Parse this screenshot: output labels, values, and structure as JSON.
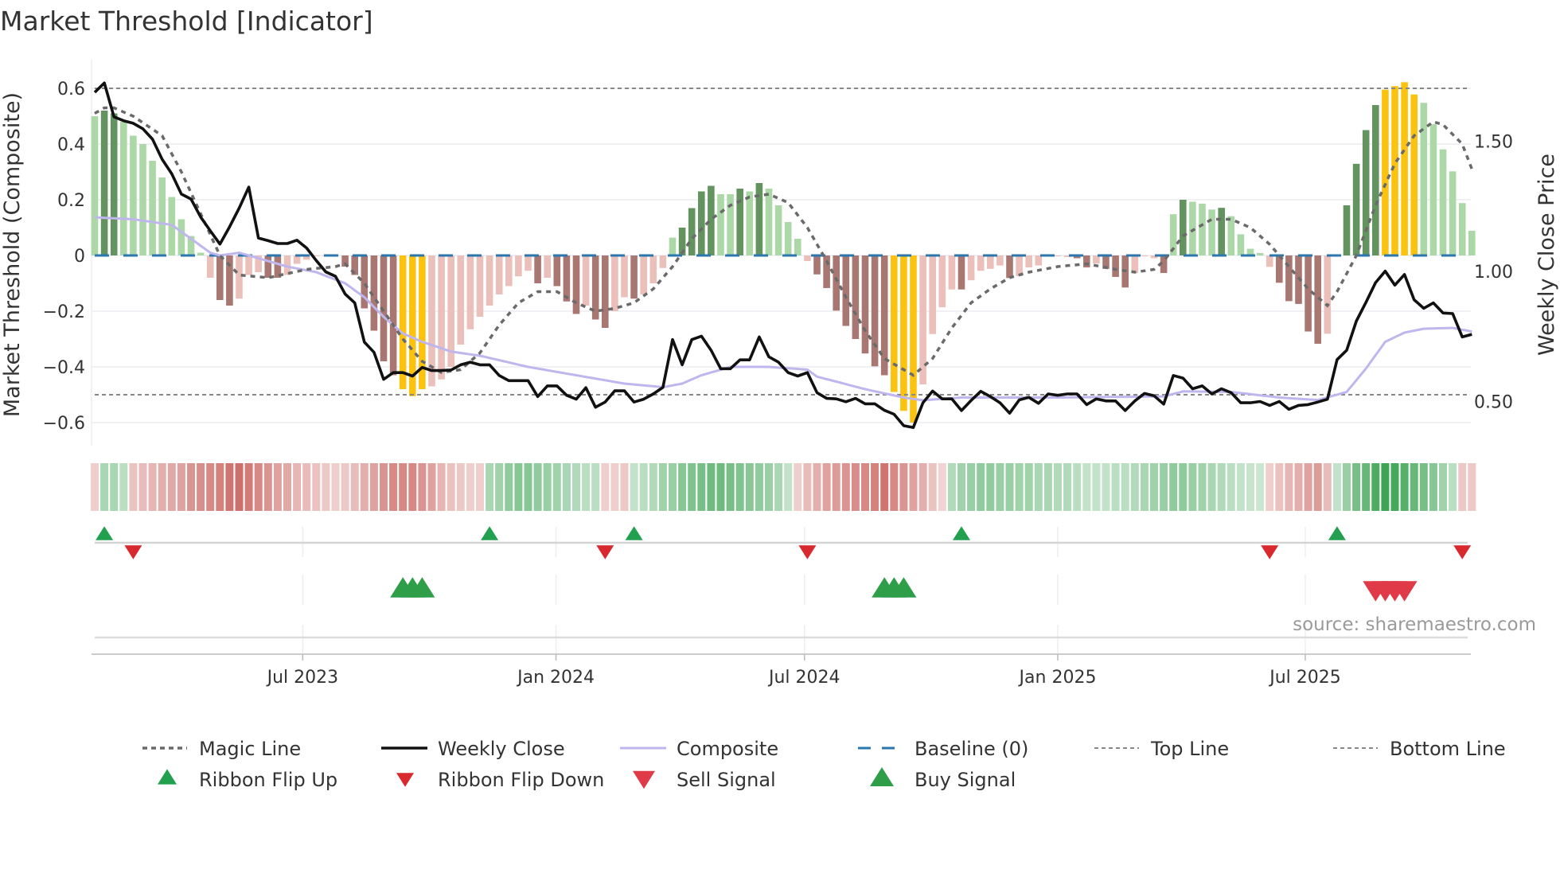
{
  "title": "Market Threshold [Indicator]",
  "source_text": "source: sharemaestro.com",
  "chart_data": {
    "type": "bar",
    "title": "Market Threshold [Indicator]",
    "ylabel": "Market Threshold (Composite)",
    "y2label": "Weekly Close Price",
    "ylim": [
      -0.68,
      0.68
    ],
    "y2lim": [
      0.4,
      1.8
    ],
    "yticks": [
      {
        "v": 0.6,
        "label": "0.6"
      },
      {
        "v": 0.4,
        "label": "0.4"
      },
      {
        "v": 0.2,
        "label": "0.2"
      },
      {
        "v": 0,
        "label": "0"
      },
      {
        "v": -0.2,
        "label": "−0.2"
      },
      {
        "v": -0.4,
        "label": "−0.4"
      },
      {
        "v": -0.6,
        "label": "−0.6"
      }
    ],
    "y2ticks": [
      {
        "v": 1.5,
        "label": "1.50"
      },
      {
        "v": 1.0,
        "label": "1.00"
      },
      {
        "v": 0.5,
        "label": "0.50"
      }
    ],
    "xticks": [
      {
        "week": 21.6,
        "label": "Jul 2023"
      },
      {
        "week": 47.9,
        "label": "Jan 2024"
      },
      {
        "week": 73.7,
        "label": "Jul 2024"
      },
      {
        "week": 100,
        "label": "Jan 2025"
      },
      {
        "week": 125.7,
        "label": "Jul 2025"
      }
    ],
    "top_line": 0.6,
    "bottom_line": -0.5,
    "baseline": 0,
    "composite_bars": [
      [
        0.5,
        "lg"
      ],
      [
        0.52,
        "dg"
      ],
      [
        0.51,
        "dg"
      ],
      [
        0.48,
        "lg"
      ],
      [
        0.43,
        "lg"
      ],
      [
        0.4,
        "lg"
      ],
      [
        0.34,
        "lg"
      ],
      [
        0.28,
        "lg"
      ],
      [
        0.21,
        "lg"
      ],
      [
        0.13,
        "lg"
      ],
      [
        0.07,
        "lg"
      ],
      [
        0.01,
        "lg"
      ],
      [
        -0.08,
        "lr"
      ],
      [
        -0.16,
        "dr"
      ],
      [
        -0.18,
        "dr"
      ],
      [
        -0.155,
        "lr"
      ],
      [
        -0.07,
        "lr"
      ],
      [
        -0.06,
        "lr"
      ],
      [
        -0.08,
        "dr"
      ],
      [
        -0.08,
        "dr"
      ],
      [
        -0.07,
        "lr"
      ],
      [
        -0.03,
        "lr"
      ],
      [
        -0.015,
        "lr"
      ],
      [
        -0.003,
        "lr"
      ],
      [
        -0.003,
        "lr"
      ],
      [
        -0.003,
        "lr"
      ],
      [
        -0.04,
        "dr"
      ],
      [
        -0.07,
        "dr"
      ],
      [
        -0.19,
        "dr"
      ],
      [
        -0.27,
        "dr"
      ],
      [
        -0.38,
        "dr"
      ],
      [
        -0.43,
        "dr"
      ],
      [
        -0.48,
        "y"
      ],
      [
        -0.505,
        "y"
      ],
      [
        -0.48,
        "y"
      ],
      [
        -0.47,
        "lr"
      ],
      [
        -0.445,
        "lr"
      ],
      [
        -0.4,
        "lr"
      ],
      [
        -0.32,
        "lr"
      ],
      [
        -0.265,
        "lr"
      ],
      [
        -0.22,
        "lr"
      ],
      [
        -0.18,
        "lr"
      ],
      [
        -0.14,
        "lr"
      ],
      [
        -0.11,
        "lr"
      ],
      [
        -0.075,
        "lr"
      ],
      [
        -0.055,
        "lr"
      ],
      [
        -0.1,
        "dr"
      ],
      [
        -0.08,
        "lr"
      ],
      [
        -0.11,
        "dr"
      ],
      [
        -0.165,
        "dr"
      ],
      [
        -0.21,
        "dr"
      ],
      [
        -0.18,
        "lr"
      ],
      [
        -0.23,
        "dr"
      ],
      [
        -0.26,
        "dr"
      ],
      [
        -0.2,
        "lr"
      ],
      [
        -0.15,
        "lr"
      ],
      [
        -0.155,
        "dr"
      ],
      [
        -0.14,
        "lr"
      ],
      [
        -0.1,
        "lr"
      ],
      [
        -0.045,
        "lr"
      ],
      [
        0.064,
        "lg"
      ],
      [
        0.1,
        "dg"
      ],
      [
        0.17,
        "dg"
      ],
      [
        0.23,
        "dg"
      ],
      [
        0.25,
        "dg"
      ],
      [
        0.22,
        "lg"
      ],
      [
        0.22,
        "lg"
      ],
      [
        0.24,
        "dg"
      ],
      [
        0.23,
        "lg"
      ],
      [
        0.26,
        "dg"
      ],
      [
        0.24,
        "lg"
      ],
      [
        0.18,
        "lg"
      ],
      [
        0.12,
        "lg"
      ],
      [
        0.06,
        "lg"
      ],
      [
        -0.02,
        "lr"
      ],
      [
        -0.068,
        "dr"
      ],
      [
        -0.117,
        "dr"
      ],
      [
        -0.198,
        "dr"
      ],
      [
        -0.253,
        "dr"
      ],
      [
        -0.3,
        "dr"
      ],
      [
        -0.352,
        "dr"
      ],
      [
        -0.398,
        "dr"
      ],
      [
        -0.43,
        "dr"
      ],
      [
        -0.49,
        "y"
      ],
      [
        -0.558,
        "y"
      ],
      [
        -0.6,
        "y"
      ],
      [
        -0.463,
        "lr"
      ],
      [
        -0.282,
        "lr"
      ],
      [
        -0.186,
        "lr"
      ],
      [
        -0.122,
        "lr"
      ],
      [
        -0.122,
        "dr"
      ],
      [
        -0.089,
        "lr"
      ],
      [
        -0.055,
        "lr"
      ],
      [
        -0.048,
        "lr"
      ],
      [
        -0.036,
        "lr"
      ],
      [
        -0.081,
        "dr"
      ],
      [
        -0.074,
        "lr"
      ],
      [
        -0.043,
        "lr"
      ],
      [
        -0.036,
        "lr"
      ],
      [
        -0.003,
        "lr"
      ],
      [
        -0.003,
        "lr"
      ],
      [
        -0.006,
        "lr"
      ],
      [
        -0.01,
        "dr"
      ],
      [
        -0.043,
        "dr"
      ],
      [
        -0.029,
        "lr"
      ],
      [
        -0.048,
        "dr"
      ],
      [
        -0.077,
        "dr"
      ],
      [
        -0.115,
        "dr"
      ],
      [
        -0.063,
        "lr"
      ],
      [
        -0.003,
        "lr"
      ],
      [
        -0.01,
        "lr"
      ],
      [
        -0.063,
        "dr"
      ],
      [
        0.148,
        "lg"
      ],
      [
        0.2,
        "dg"
      ],
      [
        0.193,
        "lg"
      ],
      [
        0.186,
        "lg"
      ],
      [
        0.165,
        "lg"
      ],
      [
        0.171,
        "dg"
      ],
      [
        0.141,
        "lg"
      ],
      [
        0.076,
        "lg"
      ],
      [
        0.024,
        "lg"
      ],
      [
        0.009,
        "lg"
      ],
      [
        -0.041,
        "lr"
      ],
      [
        -0.098,
        "dr"
      ],
      [
        -0.164,
        "dr"
      ],
      [
        -0.174,
        "dr"
      ],
      [
        -0.273,
        "dr"
      ],
      [
        -0.317,
        "dr"
      ],
      [
        -0.281,
        "lr"
      ],
      [
        -0.002,
        "lr"
      ],
      [
        0.18,
        "dg"
      ],
      [
        0.329,
        "dg"
      ],
      [
        0.45,
        "dg"
      ],
      [
        0.54,
        "dg"
      ],
      [
        0.595,
        "y"
      ],
      [
        0.608,
        "y"
      ],
      [
        0.622,
        "y"
      ],
      [
        0.578,
        "y"
      ],
      [
        0.548,
        "lg"
      ],
      [
        0.471,
        "lg"
      ],
      [
        0.381,
        "lg"
      ],
      [
        0.302,
        "lg"
      ],
      [
        0.188,
        "lg"
      ],
      [
        0.089,
        "lg"
      ]
    ],
    "weekly_close": [
      1.688,
      1.724,
      1.594,
      1.579,
      1.569,
      1.548,
      1.508,
      1.431,
      1.375,
      1.297,
      1.278,
      1.209,
      1.156,
      1.105,
      1.171,
      1.243,
      1.324,
      1.128,
      1.118,
      1.107,
      1.107,
      1.12,
      1.09,
      1.042,
      0.998,
      0.981,
      0.913,
      0.879,
      0.728,
      0.689,
      0.585,
      0.611,
      0.611,
      0.598,
      0.631,
      0.619,
      0.619,
      0.621,
      0.641,
      0.651,
      0.641,
      0.641,
      0.6,
      0.58,
      0.58,
      0.58,
      0.519,
      0.56,
      0.56,
      0.524,
      0.509,
      0.553,
      0.478,
      0.498,
      0.541,
      0.541,
      0.498,
      0.509,
      0.529,
      0.554,
      0.738,
      0.641,
      0.738,
      0.751,
      0.697,
      0.626,
      0.626,
      0.66,
      0.66,
      0.748,
      0.672,
      0.651,
      0.611,
      0.598,
      0.611,
      0.534,
      0.512,
      0.51,
      0.499,
      0.512,
      0.491,
      0.491,
      0.466,
      0.451,
      0.407,
      0.4,
      0.495,
      0.54,
      0.51,
      0.51,
      0.465,
      0.504,
      0.539,
      0.519,
      0.495,
      0.455,
      0.506,
      0.516,
      0.493,
      0.529,
      0.524,
      0.529,
      0.529,
      0.488,
      0.51,
      0.502,
      0.502,
      0.465,
      0.502,
      0.531,
      0.522,
      0.49,
      0.6,
      0.59,
      0.549,
      0.56,
      0.529,
      0.549,
      0.534,
      0.495,
      0.495,
      0.5,
      0.485,
      0.5,
      0.47,
      0.485,
      0.488,
      0.498,
      0.509,
      0.661,
      0.697,
      0.809,
      0.881,
      0.957,
      1.001,
      0.947,
      0.988,
      0.891,
      0.858,
      0.879,
      0.84,
      0.838,
      0.748,
      0.758
    ],
    "composite_line": [
      [
        0,
        0.137
      ],
      [
        4,
        0.13
      ],
      [
        8,
        0.11
      ],
      [
        10,
        0.06
      ],
      [
        12,
        0.01
      ],
      [
        13,
        0.0
      ],
      [
        15,
        0.01
      ],
      [
        17,
        -0.01
      ],
      [
        20,
        -0.04
      ],
      [
        23,
        -0.06
      ],
      [
        26,
        -0.1
      ],
      [
        28,
        -0.15
      ],
      [
        30,
        -0.22
      ],
      [
        32,
        -0.28
      ],
      [
        34,
        -0.31
      ],
      [
        37,
        -0.345
      ],
      [
        40,
        -0.36
      ],
      [
        45,
        -0.4
      ],
      [
        50,
        -0.43
      ],
      [
        55,
        -0.46
      ],
      [
        59,
        -0.473
      ],
      [
        61,
        -0.46
      ],
      [
        63,
        -0.43
      ],
      [
        66,
        -0.4
      ],
      [
        70,
        -0.4
      ],
      [
        74,
        -0.41
      ],
      [
        75,
        -0.435
      ],
      [
        80,
        -0.48
      ],
      [
        84,
        -0.51
      ],
      [
        86,
        -0.52
      ],
      [
        90,
        -0.51
      ],
      [
        100,
        -0.51
      ],
      [
        111,
        -0.506
      ],
      [
        113,
        -0.488
      ],
      [
        118,
        -0.49
      ],
      [
        123,
        -0.51
      ],
      [
        127,
        -0.519
      ],
      [
        130,
        -0.49
      ],
      [
        132,
        -0.406
      ],
      [
        134,
        -0.31
      ],
      [
        136,
        -0.277
      ],
      [
        138,
        -0.263
      ],
      [
        141,
        -0.26
      ],
      [
        143,
        -0.273
      ]
    ],
    "magic_line": [
      [
        0,
        0.51
      ],
      [
        1,
        0.53
      ],
      [
        2,
        0.53
      ],
      [
        4,
        0.5
      ],
      [
        7,
        0.43
      ],
      [
        9,
        0.3
      ],
      [
        11,
        0.15
      ],
      [
        13,
        0.0
      ],
      [
        15,
        -0.07
      ],
      [
        18,
        -0.08
      ],
      [
        22,
        -0.05
      ],
      [
        25,
        -0.04
      ],
      [
        26,
        -0.03
      ],
      [
        28,
        -0.1
      ],
      [
        30,
        -0.2
      ],
      [
        32,
        -0.3
      ],
      [
        34,
        -0.38
      ],
      [
        36,
        -0.42
      ],
      [
        38,
        -0.41
      ],
      [
        40,
        -0.35
      ],
      [
        42,
        -0.25
      ],
      [
        44,
        -0.17
      ],
      [
        46,
        -0.13
      ],
      [
        48,
        -0.13
      ],
      [
        50,
        -0.17
      ],
      [
        52,
        -0.2
      ],
      [
        54,
        -0.19
      ],
      [
        56,
        -0.17
      ],
      [
        58,
        -0.12
      ],
      [
        60,
        -0.04
      ],
      [
        62,
        0.06
      ],
      [
        64,
        0.13
      ],
      [
        66,
        0.18
      ],
      [
        68,
        0.21
      ],
      [
        70,
        0.22
      ],
      [
        72,
        0.19
      ],
      [
        74,
        0.1
      ],
      [
        76,
        -0.02
      ],
      [
        78,
        -0.15
      ],
      [
        80,
        -0.27
      ],
      [
        82,
        -0.37
      ],
      [
        85,
        -0.43
      ],
      [
        87,
        -0.37
      ],
      [
        89,
        -0.26
      ],
      [
        91,
        -0.17
      ],
      [
        93,
        -0.12
      ],
      [
        95,
        -0.08
      ],
      [
        97,
        -0.06
      ],
      [
        100,
        -0.04
      ],
      [
        103,
        -0.03
      ],
      [
        106,
        -0.05
      ],
      [
        108,
        -0.06
      ],
      [
        110,
        -0.05
      ],
      [
        111,
        -0.02
      ],
      [
        113,
        0.07
      ],
      [
        116,
        0.13
      ],
      [
        118,
        0.13
      ],
      [
        120,
        0.1
      ],
      [
        122,
        0.04
      ],
      [
        124,
        -0.04
      ],
      [
        126,
        -0.12
      ],
      [
        128,
        -0.18
      ],
      [
        129,
        -0.13
      ],
      [
        131,
        0.0
      ],
      [
        133,
        0.18
      ],
      [
        135,
        0.33
      ],
      [
        137,
        0.43
      ],
      [
        139,
        0.48
      ],
      [
        140,
        0.47
      ],
      [
        142,
        0.4
      ],
      [
        143,
        0.31
      ]
    ],
    "ribbon": [
      -0.15,
      0.3,
      0.3,
      0.2,
      -0.25,
      -0.3,
      -0.35,
      -0.4,
      -0.45,
      -0.5,
      -0.6,
      -0.65,
      -0.7,
      -0.75,
      -0.85,
      -0.9,
      -0.8,
      -0.7,
      -0.6,
      -0.5,
      -0.45,
      -0.35,
      -0.3,
      -0.25,
      -0.2,
      -0.15,
      -0.2,
      -0.3,
      -0.4,
      -0.5,
      -0.6,
      -0.7,
      -0.7,
      -0.7,
      -0.6,
      -0.5,
      -0.35,
      -0.25,
      -0.2,
      -0.15,
      -0.15,
      0.3,
      0.35,
      0.45,
      0.5,
      0.5,
      0.45,
      0.4,
      0.35,
      0.3,
      0.25,
      0.2,
      0.2,
      -0.15,
      -0.15,
      -0.2,
      0.15,
      0.2,
      0.25,
      0.35,
      0.4,
      0.5,
      0.55,
      0.6,
      0.65,
      0.65,
      0.6,
      0.55,
      0.5,
      0.45,
      0.4,
      0.3,
      0.15,
      -0.15,
      -0.3,
      -0.4,
      -0.5,
      -0.55,
      -0.6,
      -0.65,
      -0.7,
      -0.75,
      -0.85,
      -0.7,
      -0.6,
      -0.5,
      -0.4,
      -0.25,
      -0.12,
      0.25,
      0.35,
      0.4,
      0.45,
      0.45,
      0.4,
      0.4,
      0.35,
      0.35,
      0.3,
      0.3,
      0.25,
      0.25,
      0.2,
      0.15,
      0.15,
      0.15,
      0.2,
      0.2,
      0.25,
      0.3,
      0.35,
      0.4,
      0.45,
      0.45,
      0.4,
      0.35,
      0.3,
      0.25,
      0.2,
      0.15,
      0.12,
      0.1,
      -0.15,
      -0.25,
      -0.35,
      -0.4,
      -0.5,
      -0.55,
      -0.3,
      0.15,
      0.4,
      0.6,
      0.7,
      0.85,
      0.95,
      0.9,
      0.8,
      0.7,
      0.6,
      0.5,
      0.35,
      0.2,
      -0.2,
      -0.2
    ],
    "ribbon_flip_up": [
      1,
      41,
      56,
      90,
      129
    ],
    "ribbon_flip_down": [
      4,
      53,
      74,
      122,
      142
    ],
    "buy_signal": [
      32,
      33,
      34,
      82,
      83,
      84
    ],
    "sell_signal": [
      133,
      134,
      135,
      136
    ],
    "colors": {
      "dg": "#63935f",
      "lg": "#acd8a8",
      "dr": "#a97772",
      "lr": "#ebbfba",
      "y": "#fbc30f",
      "close": "#111111",
      "composite": "#bfb6ee",
      "magic": "#6a6a6a",
      "baseline": "#2a77b0",
      "flip_up": "#22a050",
      "flip_down": "#d8292f",
      "buy": "#2f9e48",
      "sell": "#e03a48",
      "ribbon_red": "#c8625d",
      "ribbon_green": "#35a04c"
    },
    "legend": [
      {
        "key": "magic",
        "label": "Magic Line"
      },
      {
        "key": "close",
        "label": "Weekly Close"
      },
      {
        "key": "composite",
        "label": "Composite"
      },
      {
        "key": "baseline",
        "label": "Baseline (0)"
      },
      {
        "key": "top",
        "label": "Top Line"
      },
      {
        "key": "bottom",
        "label": "Bottom Line"
      },
      {
        "key": "flip_up",
        "label": "Ribbon Flip Up"
      },
      {
        "key": "flip_down",
        "label": "Ribbon Flip Down"
      },
      {
        "key": "sell",
        "label": "Sell Signal"
      },
      {
        "key": "buy",
        "label": "Buy Signal"
      }
    ]
  }
}
